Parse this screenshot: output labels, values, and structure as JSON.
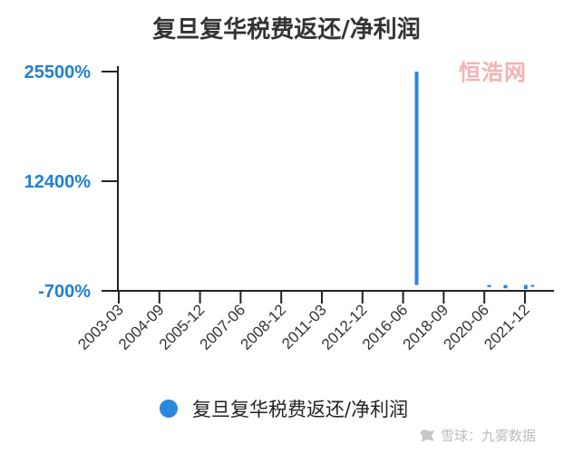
{
  "chart_data": {
    "type": "bar",
    "title": "复旦复华税费返还/净利润",
    "series": [
      {
        "name": "复旦复华税费返还/净利润",
        "color": "#2b87dc",
        "points": [
          {
            "x": 2017.17,
            "value": 25500
          },
          {
            "x": 2020.6,
            "value": -250
          },
          {
            "x": 2021.2,
            "value": -400
          },
          {
            "x": 2021.95,
            "value": -500
          },
          {
            "x": 2022.2,
            "value": -100
          }
        ]
      }
    ],
    "yticks": [
      "25500%",
      "12400%",
      "-700%"
    ],
    "ytick_values": [
      25500,
      12400,
      -700
    ],
    "ylim": [
      -700,
      25500
    ],
    "xticks": [
      "2003-03",
      "2004-09",
      "2005-12",
      "2007-06",
      "2008-12",
      "2011-03",
      "2012-12",
      "2016-06",
      "2018-09",
      "2020-06",
      "2021-12"
    ],
    "xlabel": "",
    "ylabel": "",
    "legend_position": "bottom"
  },
  "watermarks": {
    "top_right": "恒浩网",
    "bottom_right": "雪球：九雾数据"
  },
  "icons": {
    "legend_marker": "circle-marker-icon",
    "snowball": "snowball-icon"
  }
}
